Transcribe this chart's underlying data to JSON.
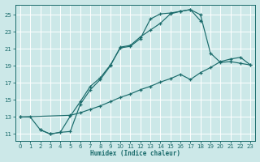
{
  "bg_color": "#cce8e8",
  "grid_color": "#b0d0d0",
  "line_color": "#1a6b6b",
  "xlabel": "Humidex (Indice chaleur)",
  "xlim": [
    -0.5,
    23.5
  ],
  "ylim": [
    10.2,
    26.2
  ],
  "xticks": [
    0,
    1,
    2,
    3,
    4,
    5,
    6,
    7,
    8,
    9,
    10,
    11,
    12,
    13,
    14,
    15,
    16,
    17,
    18,
    19,
    20,
    21,
    22,
    23
  ],
  "yticks": [
    11,
    13,
    15,
    17,
    19,
    21,
    23,
    25
  ],
  "curve1_x": [
    0,
    1,
    2,
    3,
    4,
    5,
    6,
    7,
    8,
    9,
    10,
    11,
    12,
    13,
    14,
    15,
    16,
    17,
    18,
    19,
    20,
    21,
    22,
    23
  ],
  "curve1_y": [
    13.0,
    13.0,
    11.5,
    11.0,
    11.2,
    11.3,
    14.5,
    16.2,
    17.4,
    19.0,
    21.2,
    21.4,
    22.4,
    23.2,
    24.0,
    25.1,
    25.4,
    25.6,
    25.0,
    20.5,
    19.4,
    19.5,
    19.3,
    19.1
  ],
  "curve2_x": [
    2,
    3,
    4,
    5,
    6,
    7,
    8,
    9,
    10,
    11,
    12,
    13,
    14,
    15,
    16,
    17,
    18
  ],
  "curve2_y": [
    11.5,
    11.0,
    11.2,
    13.1,
    14.8,
    16.6,
    17.6,
    19.1,
    21.1,
    21.3,
    22.2,
    24.5,
    25.1,
    25.2,
    25.4,
    25.6,
    24.3
  ],
  "curve3_x": [
    0,
    5,
    6,
    7,
    8,
    9,
    10,
    11,
    12,
    13,
    14,
    15,
    16,
    17,
    18,
    19,
    20,
    21,
    22,
    23
  ],
  "curve3_y": [
    13.0,
    13.2,
    13.5,
    13.9,
    14.3,
    14.8,
    15.3,
    15.7,
    16.2,
    16.6,
    17.1,
    17.5,
    18.0,
    17.4,
    18.2,
    18.8,
    19.5,
    19.8,
    20.0,
    19.1
  ]
}
